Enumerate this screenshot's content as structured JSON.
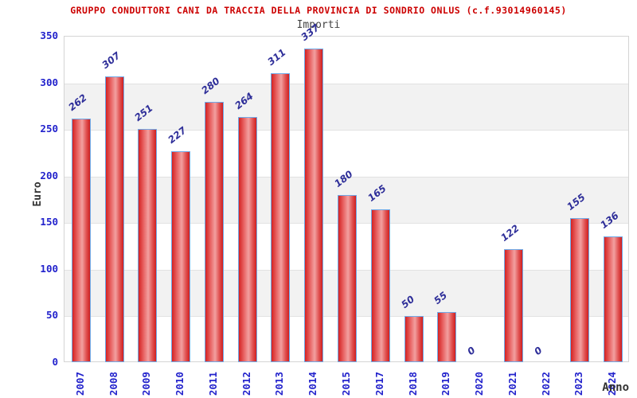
{
  "header": {
    "title": "GRUPPO CONDUTTORI CANI DA TRACCIA DELLA PROVINCIA DI SONDRIO ONLUS (c.f.93014960145)",
    "subtitle": "Importi"
  },
  "chart_data": {
    "type": "bar",
    "title": "GRUPPO CONDUTTORI CANI DA TRACCIA DELLA PROVINCIA DI SONDRIO ONLUS (c.f.93014960145)",
    "subtitle": "Importi",
    "categories": [
      "2007",
      "2008",
      "2009",
      "2010",
      "2011",
      "2012",
      "2013",
      "2014",
      "2015",
      "2017",
      "2018",
      "2019",
      "2020",
      "2021",
      "2022",
      "2023",
      "2024"
    ],
    "values": [
      262,
      307,
      251,
      227,
      280,
      264,
      311,
      337,
      180,
      165,
      50,
      55,
      0,
      122,
      0,
      155,
      136
    ],
    "xlabel": "Anno",
    "ylabel": "Euro",
    "ylim": [
      0,
      350
    ],
    "yticks": [
      0,
      50,
      100,
      150,
      200,
      250,
      300,
      350
    ],
    "gray_bands": [
      [
        250,
        300
      ],
      [
        150,
        200
      ],
      [
        50,
        100
      ]
    ],
    "grid": true,
    "legend_position": "none",
    "colors": {
      "title": "#cc0000",
      "subtitle": "#444444",
      "tick_label": "#2222cc",
      "value_label": "#2e2e99",
      "axis_title": "#333333",
      "bar_border": "#6faae8",
      "bar_fill_dark": "#d42222",
      "bar_fill_light": "#f2a0a0",
      "band": "#f2f2f2",
      "gridline": "#e2e2e2",
      "plot_border": "#d4d4d4",
      "background": "#ffffff"
    }
  }
}
